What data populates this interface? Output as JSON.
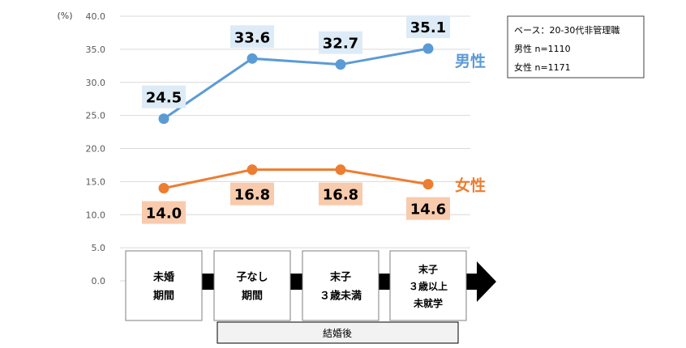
{
  "chart_data": {
    "type": "line",
    "unit_label": "(%)",
    "ylim": [
      0,
      40
    ],
    "yticks": [
      "0.0",
      "5.0",
      "10.0",
      "15.0",
      "20.0",
      "25.0",
      "30.0",
      "35.0",
      "40.0"
    ],
    "grid": true,
    "categories": [
      "未婚\n期間",
      "子なし\n期間",
      "末子\n３歳未満",
      "末子\n３歳以上\n未就学"
    ],
    "series": [
      {
        "name": "男性",
        "values": [
          24.5,
          33.6,
          32.7,
          35.1
        ],
        "labels": [
          "24.5",
          "33.6",
          "32.7",
          "35.1"
        ],
        "color": "#5b9bd5",
        "label_bg": "#ddebf7"
      },
      {
        "name": "女性",
        "values": [
          14.0,
          16.8,
          16.8,
          14.6
        ],
        "labels": [
          "14.0",
          "16.8",
          "16.8",
          "14.6"
        ],
        "color": "#ed7d31",
        "label_bg": "#f8cbad"
      }
    ],
    "bracket_label": "結婚後",
    "legend_box": [
      "ベース：20-30代非管理職",
      "男性 n=1110",
      "女性 n=1171"
    ]
  },
  "colors": {
    "grid": "#d9d9d9",
    "axis_text": "#595959",
    "stage_border": "#7f7f7f",
    "arrow": "#000000",
    "bracket_bg": "#f2f2f2"
  }
}
